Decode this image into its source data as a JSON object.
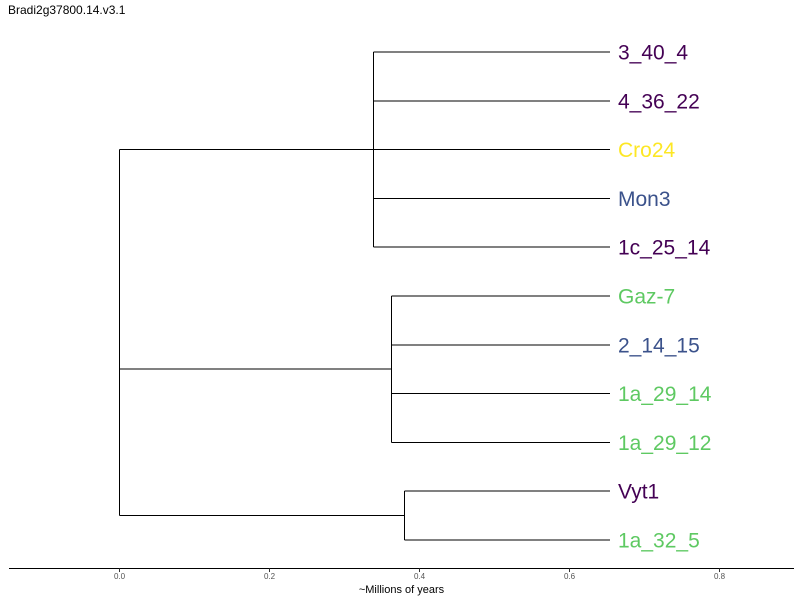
{
  "title": "Bradi2g37800.14.v3.1",
  "axis": {
    "label": "~Millions of years",
    "ticks": [
      0.0,
      0.2,
      0.4,
      0.6,
      0.8
    ],
    "tick_labels": [
      "0.0",
      "0.2",
      "0.4",
      "0.6",
      "0.8"
    ],
    "range": [
      -0.146,
      0.9
    ]
  },
  "colors": {
    "dark_purple": "#440154",
    "slate_blue": "#3b528b",
    "green": "#5ec962",
    "yellow": "#fde725"
  },
  "tree": {
    "name": "root",
    "height": 0.0,
    "children": [
      {
        "name": "clade-1",
        "height": 0.0,
        "children": [
          {
            "name": "clade-1a",
            "height": 0.339,
            "children": [
              {
                "name": "3_40_4",
                "color": "#440154"
              },
              {
                "name": "4_36_22",
                "color": "#440154"
              },
              {
                "name": "Cro24",
                "color": "#fde725"
              },
              {
                "name": "Mon3",
                "color": "#3b528b"
              },
              {
                "name": "1c_25_14",
                "color": "#440154"
              }
            ]
          },
          {
            "name": "clade-1b",
            "height": 0.363,
            "children": [
              {
                "name": "Gaz-7",
                "color": "#5ec962"
              },
              {
                "name": "2_14_15",
                "color": "#3b528b"
              },
              {
                "name": "1a_29_14",
                "color": "#5ec962"
              },
              {
                "name": "1a_29_12",
                "color": "#5ec962"
              }
            ]
          }
        ]
      },
      {
        "name": "clade-2",
        "height": 0.38,
        "children": [
          {
            "name": "Vyt1",
            "color": "#440154"
          },
          {
            "name": "1a_32_5",
            "color": "#5ec962"
          }
        ]
      }
    ]
  }
}
